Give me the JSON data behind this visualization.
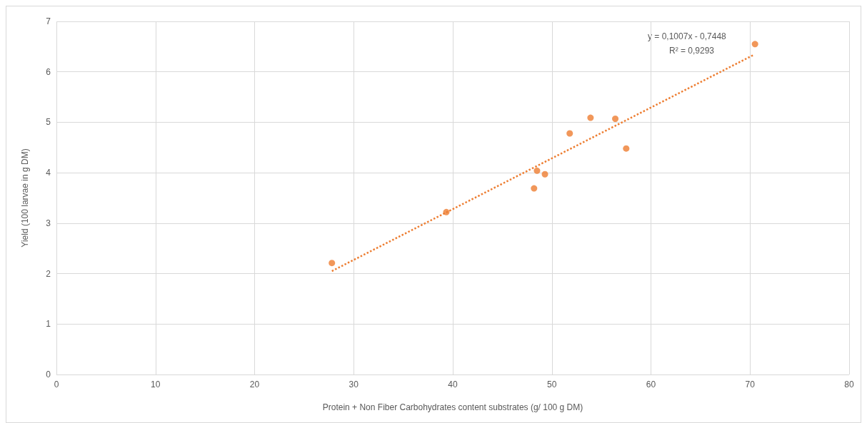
{
  "chart_data": {
    "type": "scatter",
    "xlabel": "Protein + Non Fiber Carbohydrates content substrates (g/ 100 g DM)",
    "ylabel": "Yield (100 larvae in g DM)",
    "xlim": [
      0,
      80
    ],
    "xticks": [
      0,
      10,
      20,
      30,
      40,
      50,
      60,
      70,
      80
    ],
    "ylim": [
      0,
      7
    ],
    "yticks": [
      0,
      1,
      2,
      3,
      4,
      5,
      6,
      7
    ],
    "grid": true,
    "marker": "circle",
    "annotations": [
      "y = 0,1007x - 0,7448",
      "R² = 0,9293"
    ],
    "series": [
      {
        "color": "#ed7d31",
        "x": [
          27.8,
          39.35,
          48.2,
          48.5,
          49.3,
          51.8,
          53.9,
          56.4,
          57.5,
          70.5
        ],
        "values": [
          2.21,
          3.22,
          3.69,
          4.04,
          3.97,
          4.78,
          5.09,
          5.07,
          4.48,
          6.55
        ]
      },
      {
        "type": "line",
        "color": "#ed7d31",
        "line_style": "dotted",
        "marker": "none",
        "x": [
          27.8,
          70.4
        ],
        "values": [
          2.05,
          6.34
        ]
      }
    ]
  }
}
